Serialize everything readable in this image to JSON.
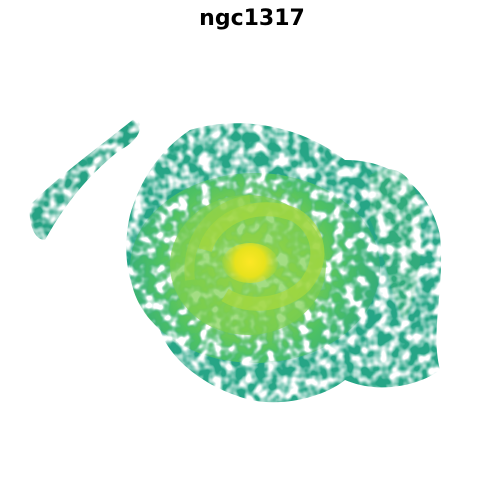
{
  "title": "ngc1317",
  "colormap": [
    "#440154",
    "#2a788e",
    "#22a884",
    "#7ad151",
    "#fde725"
  ],
  "background": "#ffffff"
}
